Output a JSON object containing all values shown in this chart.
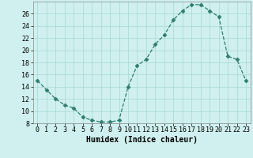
{
  "x": [
    0,
    1,
    2,
    3,
    4,
    5,
    6,
    7,
    8,
    9,
    10,
    11,
    12,
    13,
    14,
    15,
    16,
    17,
    18,
    19,
    20,
    21,
    22,
    23
  ],
  "y": [
    15,
    13.5,
    12,
    11,
    10.5,
    9,
    8.5,
    8.2,
    8.2,
    8.5,
    14,
    17.5,
    18.5,
    21,
    22.5,
    25,
    26.5,
    27.5,
    27.5,
    26.5,
    25.5,
    19,
    18.5,
    15
  ],
  "line_color": "#2e7d6e",
  "marker": "D",
  "marker_size": 2.5,
  "bg_color": "#cff0ee",
  "grid_color": "#a8d8d4",
  "xlabel": "Humidex (Indice chaleur)",
  "ylim": [
    8,
    28
  ],
  "xlim": [
    -0.5,
    23.5
  ],
  "yticks": [
    8,
    10,
    12,
    14,
    16,
    18,
    20,
    22,
    24,
    26
  ],
  "xticks": [
    0,
    1,
    2,
    3,
    4,
    5,
    6,
    7,
    8,
    9,
    10,
    11,
    12,
    13,
    14,
    15,
    16,
    17,
    18,
    19,
    20,
    21,
    22,
    23
  ],
  "xlabel_fontsize": 7,
  "tick_fontsize": 6,
  "title_fontsize": 7
}
